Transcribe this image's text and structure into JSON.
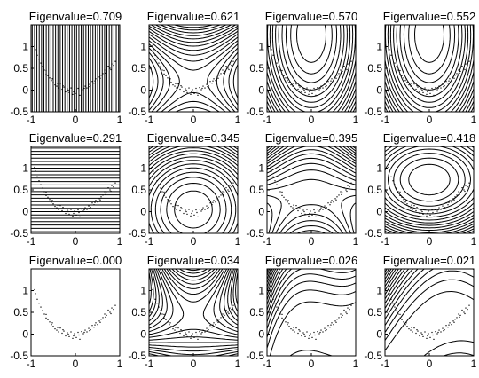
{
  "figure": {
    "rows": 3,
    "cols": 4,
    "line_color": "#000000",
    "background": "#ffffff"
  },
  "chart_data": {
    "type": "contour",
    "xlim": [
      -1,
      1
    ],
    "ylim": [
      -0.5,
      1.5
    ],
    "xticks": [
      -1,
      0,
      1
    ],
    "xtick_labels": [
      "-1",
      "0",
      "1"
    ],
    "yticks": [
      -0.5,
      0,
      0.5,
      1
    ],
    "ytick_labels": [
      "-0.5",
      "0",
      "0.5",
      "1"
    ],
    "grid": false,
    "legend": "none",
    "panels": [
      {
        "row": 0,
        "col": 0,
        "title": "Eigenvalue=0.709",
        "eigenvalue": 0.709,
        "pattern": "vertical-lines"
      },
      {
        "row": 0,
        "col": 1,
        "title": "Eigenvalue=0.621",
        "eigenvalue": 0.621,
        "pattern": "saddle"
      },
      {
        "row": 0,
        "col": 2,
        "title": "Eigenvalue=0.570",
        "eigenvalue": 0.57,
        "pattern": "bulge"
      },
      {
        "row": 0,
        "col": 3,
        "title": "Eigenvalue=0.552",
        "eigenvalue": 0.552,
        "pattern": "bulge"
      },
      {
        "row": 1,
        "col": 0,
        "title": "Eigenvalue=0.291",
        "eigenvalue": 0.291,
        "pattern": "horizontal-lines"
      },
      {
        "row": 1,
        "col": 1,
        "title": "Eigenvalue=0.345",
        "eigenvalue": 0.345,
        "pattern": "circles"
      },
      {
        "row": 1,
        "col": 2,
        "title": "Eigenvalue=0.395",
        "eigenvalue": 0.395,
        "pattern": "eye"
      },
      {
        "row": 1,
        "col": 3,
        "title": "Eigenvalue=0.418",
        "eigenvalue": 0.418,
        "pattern": "bowl"
      },
      {
        "row": 2,
        "col": 0,
        "title": "Eigenvalue=0.000",
        "eigenvalue": 0.0,
        "pattern": "points-only"
      },
      {
        "row": 2,
        "col": 1,
        "title": "Eigenvalue=0.034",
        "eigenvalue": 0.034,
        "pattern": "saddle-high"
      },
      {
        "row": 2,
        "col": 2,
        "title": "Eigenvalue=0.026",
        "eigenvalue": 0.026,
        "pattern": "ridge-left"
      },
      {
        "row": 2,
        "col": 3,
        "title": "Eigenvalue=0.021",
        "eigenvalue": 0.021,
        "pattern": "ridge-right"
      }
    ],
    "points": [
      [
        -0.92,
        1.02
      ],
      [
        -0.9,
        0.93
      ],
      [
        -0.86,
        0.8
      ],
      [
        -0.82,
        0.71
      ],
      [
        -0.78,
        0.62
      ],
      [
        -0.74,
        0.54
      ],
      [
        -0.7,
        0.46
      ],
      [
        -0.66,
        0.37
      ],
      [
        -0.62,
        0.33
      ],
      [
        -0.58,
        0.28
      ],
      [
        -0.54,
        0.22
      ],
      [
        -0.5,
        0.18
      ],
      [
        -0.46,
        0.12
      ],
      [
        -0.42,
        0.09
      ],
      [
        -0.38,
        0.05
      ],
      [
        -0.34,
        0.14
      ],
      [
        -0.3,
        0.02
      ],
      [
        -0.26,
        0.07
      ],
      [
        -0.22,
        -0.04
      ],
      [
        -0.18,
        0.03
      ],
      [
        -0.14,
        -0.06
      ],
      [
        -0.1,
        0.05
      ],
      [
        -0.06,
        -0.1
      ],
      [
        -0.02,
        0.01
      ],
      [
        0.02,
        -0.08
      ],
      [
        0.06,
        0.04
      ],
      [
        0.1,
        -0.12
      ],
      [
        0.14,
        0.06
      ],
      [
        0.18,
        0.01
      ],
      [
        0.22,
        0.09
      ],
      [
        0.26,
        0.05
      ],
      [
        0.3,
        0.13
      ],
      [
        0.34,
        0.1
      ],
      [
        0.38,
        0.2
      ],
      [
        0.42,
        0.16
      ],
      [
        0.46,
        0.26
      ],
      [
        0.5,
        0.22
      ],
      [
        0.54,
        0.3
      ],
      [
        0.58,
        0.34
      ],
      [
        0.62,
        0.38
      ],
      [
        0.66,
        0.46
      ],
      [
        0.7,
        0.43
      ],
      [
        0.74,
        0.55
      ],
      [
        0.78,
        0.5
      ],
      [
        0.82,
        0.6
      ],
      [
        0.86,
        0.57
      ],
      [
        0.9,
        0.66
      ],
      [
        -0.66,
        0.45
      ],
      [
        -0.52,
        0.26
      ],
      [
        -0.4,
        0.15
      ],
      [
        -0.28,
        0.1
      ],
      [
        -0.16,
        0.0
      ],
      [
        -0.04,
        -0.04
      ],
      [
        0.08,
        -0.02
      ],
      [
        0.2,
        0.04
      ],
      [
        0.32,
        0.08
      ],
      [
        0.44,
        0.21
      ],
      [
        0.56,
        0.27
      ],
      [
        0.68,
        0.39
      ],
      [
        0.8,
        0.47
      ]
    ]
  }
}
